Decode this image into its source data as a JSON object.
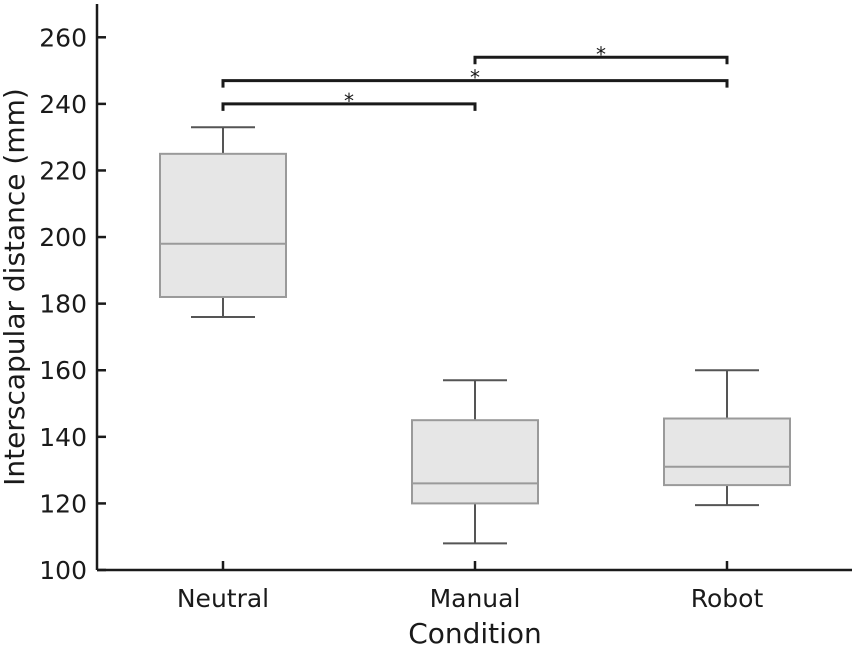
{
  "chart_data": {
    "type": "box",
    "xlabel": "Condition",
    "ylabel": "Interscapular distance (mm)",
    "ylim": [
      100,
      270
    ],
    "yticks": [
      100,
      120,
      140,
      160,
      180,
      200,
      220,
      240,
      260
    ],
    "categories": [
      "Neutral",
      "Manual",
      "Robot"
    ],
    "boxes": [
      {
        "category": "Neutral",
        "whisker_low": 176,
        "q1": 182,
        "median": 198,
        "q3": 225,
        "whisker_high": 233
      },
      {
        "category": "Manual",
        "whisker_low": 108,
        "q1": 120,
        "median": 126,
        "q3": 145,
        "whisker_high": 157
      },
      {
        "category": "Robot",
        "whisker_low": 119.5,
        "q1": 125.5,
        "median": 131,
        "q3": 145.5,
        "whisker_high": 160
      }
    ],
    "significance": [
      {
        "from": "Neutral",
        "to": "Manual",
        "y": 240,
        "label": "*"
      },
      {
        "from": "Neutral",
        "to": "Robot",
        "y": 247,
        "label": "*"
      },
      {
        "from": "Manual",
        "to": "Robot",
        "y": 254,
        "label": "*"
      }
    ],
    "colors": {
      "box_fill": "#e6e6e6",
      "box_edge": "#9a9a9a",
      "whisker": "#555555",
      "axis": "#1a1a1a"
    }
  }
}
